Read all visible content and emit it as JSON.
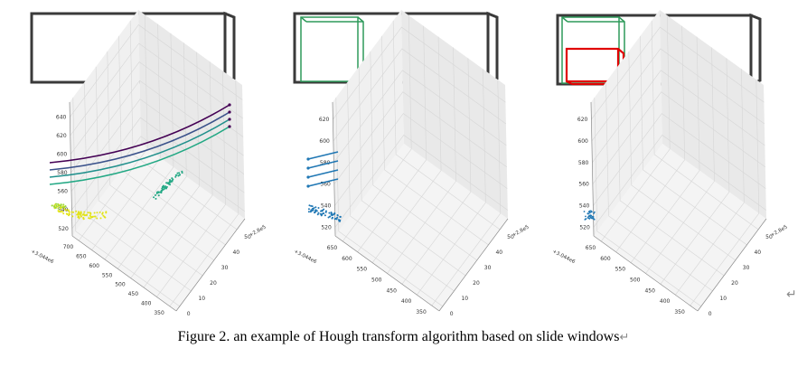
{
  "caption": {
    "text": "Figure 2. an example of Hough transform algorithm based on slide windows",
    "return_mark": "↵"
  },
  "corner_mark": "↵",
  "colors": {
    "frame": "#3a3a3a",
    "window": "#2e9a5a",
    "sub_window": "#e00000",
    "scatter": "#1f77b4"
  },
  "panels": [
    {
      "name": "full-frame",
      "windows": []
    },
    {
      "name": "slide-window",
      "windows": [
        "green-window"
      ]
    },
    {
      "name": "sub-window",
      "windows": [
        "green-window",
        "red-sub-window"
      ]
    }
  ],
  "chart_data": [
    {
      "type": "scatter",
      "projection": "3d",
      "z_ticks": [
        "520",
        "540",
        "560",
        "580",
        "600",
        "620",
        "640"
      ],
      "y_ticks": [
        "700",
        "650",
        "600",
        "550",
        "500",
        "450",
        "400",
        "350"
      ],
      "y_offset_label": "+3.044e6",
      "x_ticks": [
        "0",
        "10",
        "20",
        "30",
        "40",
        "50"
      ],
      "x_offset_label": "+2.8e5",
      "series": [
        {
          "kind": "line",
          "color": "#22a884",
          "z": [
            568,
            640
          ],
          "count": 4
        },
        {
          "kind": "cluster",
          "color": "#e2e418",
          "z": [
            525,
            545
          ]
        },
        {
          "kind": "cluster",
          "color": "#22a884",
          "z": [
            545,
            575
          ]
        }
      ]
    },
    {
      "type": "scatter",
      "projection": "3d",
      "z_ticks": [
        "520",
        "540",
        "560",
        "580",
        "600",
        "620"
      ],
      "y_ticks": [
        "650",
        "600",
        "550",
        "500",
        "450",
        "400",
        "350"
      ],
      "y_offset_label": "+3.044e6",
      "x_ticks": [
        "0",
        "10",
        "20",
        "30",
        "40",
        "50"
      ],
      "x_offset_label": "+2.8e5",
      "series": [
        {
          "kind": "line",
          "color": "#1f77b4",
          "z": [
            568,
            592
          ],
          "count": 4
        },
        {
          "kind": "cluster",
          "color": "#1f77b4",
          "z": [
            530,
            545
          ]
        }
      ]
    },
    {
      "type": "scatter",
      "projection": "3d",
      "z_ticks": [
        "520",
        "540",
        "560",
        "580",
        "600",
        "620"
      ],
      "y_ticks": [
        "650",
        "600",
        "550",
        "500",
        "450",
        "400",
        "350"
      ],
      "y_offset_label": "+3.044e6",
      "x_ticks": [
        "0",
        "10",
        "20",
        "30",
        "40",
        "50"
      ],
      "x_offset_label": "+2.8e5",
      "series": [
        {
          "kind": "cluster",
          "color": "#1f77b4",
          "z": [
            530,
            540
          ]
        }
      ]
    }
  ]
}
